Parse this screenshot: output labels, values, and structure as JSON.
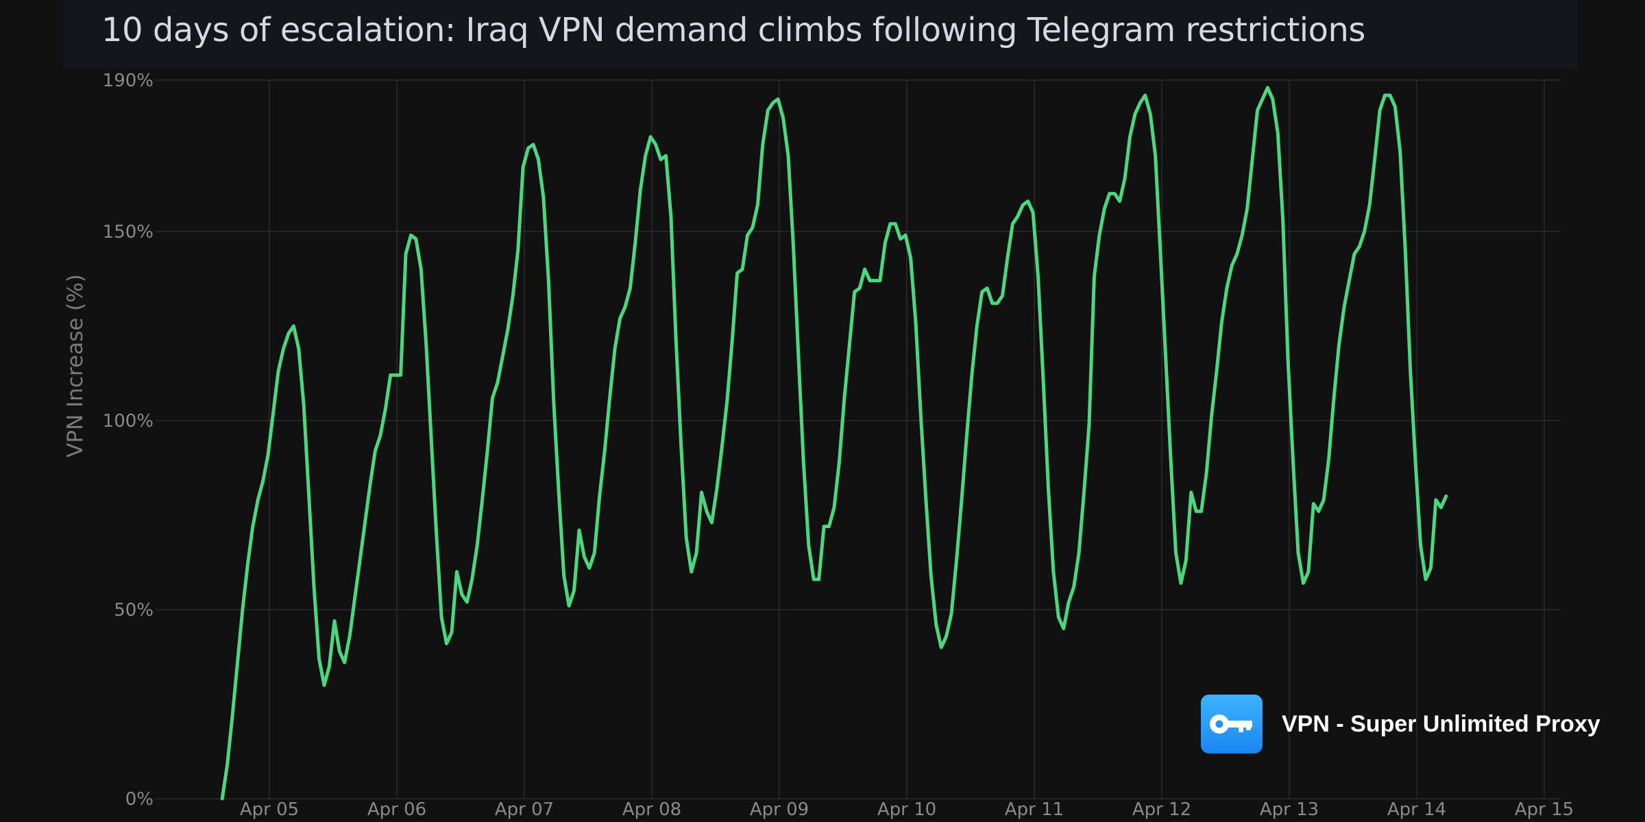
{
  "chart_data": {
    "type": "line",
    "title": "10 days of escalation: Iraq VPN demand climbs following Telegram restrictions",
    "xlabel": "",
    "ylabel": "VPN Increase (%)",
    "x_ticks": [
      "Apr 05",
      "Apr 06",
      "Apr 07",
      "Apr 08",
      "Apr 09",
      "Apr 10",
      "Apr 11",
      "Apr 12",
      "Apr 13",
      "Apr 14",
      "Apr 15"
    ],
    "y_ticks": [
      "0%",
      "50%",
      "100%",
      "150%",
      "190%"
    ],
    "y_tick_values": [
      0,
      50,
      100,
      150,
      190
    ],
    "xlim_days_from_apr05": [
      -0.86,
      10.1
    ],
    "ylim": [
      0,
      190
    ],
    "grid": true,
    "line_color": "#4cd680",
    "series": [
      {
        "name": "",
        "points": [
          [
            -0.37,
            0
          ],
          [
            -0.33,
            9
          ],
          [
            -0.29,
            22
          ],
          [
            -0.25,
            36
          ],
          [
            -0.21,
            50
          ],
          [
            -0.17,
            62
          ],
          [
            -0.13,
            72
          ],
          [
            -0.09,
            79
          ],
          [
            -0.05,
            84
          ],
          [
            -0.01,
            91
          ],
          [
            0.03,
            102
          ],
          [
            0.07,
            113
          ],
          [
            0.11,
            119
          ],
          [
            0.15,
            123
          ],
          [
            0.19,
            125
          ],
          [
            0.23,
            119
          ],
          [
            0.27,
            104
          ],
          [
            0.31,
            80
          ],
          [
            0.35,
            56
          ],
          [
            0.39,
            37
          ],
          [
            0.43,
            30
          ],
          [
            0.47,
            35
          ],
          [
            0.51,
            47
          ],
          [
            0.55,
            39
          ],
          [
            0.59,
            36
          ],
          [
            0.63,
            43
          ],
          [
            0.67,
            53
          ],
          [
            0.71,
            63
          ],
          [
            0.75,
            73
          ],
          [
            0.79,
            83
          ],
          [
            0.83,
            92
          ],
          [
            0.87,
            96
          ],
          [
            0.91,
            103
          ],
          [
            0.95,
            112
          ],
          [
            0.99,
            112
          ],
          [
            1.03,
            112
          ],
          [
            1.07,
            144
          ],
          [
            1.11,
            149
          ],
          [
            1.15,
            148
          ],
          [
            1.19,
            140
          ],
          [
            1.23,
            120
          ],
          [
            1.27,
            95
          ],
          [
            1.31,
            70
          ],
          [
            1.35,
            48
          ],
          [
            1.39,
            41
          ],
          [
            1.43,
            44
          ],
          [
            1.47,
            60
          ],
          [
            1.51,
            54
          ],
          [
            1.55,
            52
          ],
          [
            1.59,
            58
          ],
          [
            1.63,
            67
          ],
          [
            1.67,
            79
          ],
          [
            1.71,
            92
          ],
          [
            1.75,
            106
          ],
          [
            1.79,
            110
          ],
          [
            1.83,
            117
          ],
          [
            1.87,
            124
          ],
          [
            1.91,
            133
          ],
          [
            1.95,
            145
          ],
          [
            1.99,
            167
          ],
          [
            2.03,
            172
          ],
          [
            2.07,
            173
          ],
          [
            2.11,
            169
          ],
          [
            2.15,
            159
          ],
          [
            2.19,
            137
          ],
          [
            2.23,
            105
          ],
          [
            2.27,
            81
          ],
          [
            2.31,
            59
          ],
          [
            2.35,
            51
          ],
          [
            2.39,
            55
          ],
          [
            2.43,
            71
          ],
          [
            2.47,
            64
          ],
          [
            2.51,
            61
          ],
          [
            2.55,
            65
          ],
          [
            2.59,
            80
          ],
          [
            2.63,
            92
          ],
          [
            2.67,
            106
          ],
          [
            2.71,
            119
          ],
          [
            2.75,
            127
          ],
          [
            2.79,
            130
          ],
          [
            2.83,
            135
          ],
          [
            2.87,
            147
          ],
          [
            2.91,
            161
          ],
          [
            2.95,
            170
          ],
          [
            2.99,
            175
          ],
          [
            3.03,
            173
          ],
          [
            3.07,
            169
          ],
          [
            3.11,
            170
          ],
          [
            3.15,
            154
          ],
          [
            3.19,
            121
          ],
          [
            3.23,
            93
          ],
          [
            3.27,
            69
          ],
          [
            3.31,
            60
          ],
          [
            3.35,
            65
          ],
          [
            3.39,
            81
          ],
          [
            3.43,
            76
          ],
          [
            3.47,
            73
          ],
          [
            3.51,
            82
          ],
          [
            3.55,
            93
          ],
          [
            3.59,
            105
          ],
          [
            3.63,
            121
          ],
          [
            3.67,
            139
          ],
          [
            3.71,
            140
          ],
          [
            3.75,
            149
          ],
          [
            3.79,
            151
          ],
          [
            3.83,
            157
          ],
          [
            3.87,
            173
          ],
          [
            3.91,
            182
          ],
          [
            3.95,
            184
          ],
          [
            3.99,
            185
          ],
          [
            4.03,
            180
          ],
          [
            4.07,
            170
          ],
          [
            4.11,
            146
          ],
          [
            4.15,
            117
          ],
          [
            4.19,
            89
          ],
          [
            4.23,
            67
          ],
          [
            4.27,
            58
          ],
          [
            4.31,
            58
          ],
          [
            4.35,
            72
          ],
          [
            4.39,
            72
          ],
          [
            4.43,
            77
          ],
          [
            4.47,
            89
          ],
          [
            4.51,
            106
          ],
          [
            4.55,
            120
          ],
          [
            4.59,
            134
          ],
          [
            4.63,
            135
          ],
          [
            4.67,
            140
          ],
          [
            4.71,
            137
          ],
          [
            4.75,
            137
          ],
          [
            4.79,
            137
          ],
          [
            4.83,
            147
          ],
          [
            4.87,
            152
          ],
          [
            4.91,
            152
          ],
          [
            4.95,
            148
          ],
          [
            4.99,
            149
          ],
          [
            5.03,
            143
          ],
          [
            5.07,
            126
          ],
          [
            5.11,
            101
          ],
          [
            5.15,
            79
          ],
          [
            5.19,
            59
          ],
          [
            5.23,
            46
          ],
          [
            5.27,
            40
          ],
          [
            5.31,
            43
          ],
          [
            5.35,
            49
          ],
          [
            5.39,
            63
          ],
          [
            5.43,
            79
          ],
          [
            5.47,
            96
          ],
          [
            5.51,
            112
          ],
          [
            5.55,
            125
          ],
          [
            5.59,
            134
          ],
          [
            5.63,
            135
          ],
          [
            5.67,
            131
          ],
          [
            5.71,
            131
          ],
          [
            5.75,
            133
          ],
          [
            5.79,
            143
          ],
          [
            5.83,
            152
          ],
          [
            5.87,
            154
          ],
          [
            5.91,
            157
          ],
          [
            5.95,
            158
          ],
          [
            5.99,
            155
          ],
          [
            6.03,
            138
          ],
          [
            6.07,
            111
          ],
          [
            6.11,
            82
          ],
          [
            6.15,
            60
          ],
          [
            6.19,
            48
          ],
          [
            6.23,
            45
          ],
          [
            6.27,
            52
          ],
          [
            6.31,
            56
          ],
          [
            6.35,
            65
          ],
          [
            6.39,
            81
          ],
          [
            6.43,
            99
          ],
          [
            6.47,
            138
          ],
          [
            6.51,
            149
          ],
          [
            6.55,
            156
          ],
          [
            6.59,
            160
          ],
          [
            6.63,
            160
          ],
          [
            6.67,
            158
          ],
          [
            6.71,
            164
          ],
          [
            6.75,
            175
          ],
          [
            6.79,
            181
          ],
          [
            6.83,
            184
          ],
          [
            6.87,
            186
          ],
          [
            6.91,
            181
          ],
          [
            6.95,
            170
          ],
          [
            6.99,
            144
          ],
          [
            7.03,
            117
          ],
          [
            7.07,
            90
          ],
          [
            7.11,
            65
          ],
          [
            7.15,
            57
          ],
          [
            7.19,
            63
          ],
          [
            7.23,
            81
          ],
          [
            7.27,
            76
          ],
          [
            7.31,
            76
          ],
          [
            7.35,
            86
          ],
          [
            7.39,
            101
          ],
          [
            7.43,
            113
          ],
          [
            7.47,
            126
          ],
          [
            7.51,
            135
          ],
          [
            7.55,
            141
          ],
          [
            7.59,
            144
          ],
          [
            7.63,
            149
          ],
          [
            7.67,
            156
          ],
          [
            7.71,
            169
          ],
          [
            7.75,
            182
          ],
          [
            7.79,
            185
          ],
          [
            7.83,
            188
          ],
          [
            7.87,
            185
          ],
          [
            7.91,
            176
          ],
          [
            7.95,
            153
          ],
          [
            7.99,
            116
          ],
          [
            8.03,
            89
          ],
          [
            8.07,
            65
          ],
          [
            8.11,
            57
          ],
          [
            8.15,
            60
          ],
          [
            8.19,
            78
          ],
          [
            8.23,
            76
          ],
          [
            8.27,
            79
          ],
          [
            8.31,
            90
          ],
          [
            8.35,
            106
          ],
          [
            8.39,
            120
          ],
          [
            8.43,
            130
          ],
          [
            8.47,
            137
          ],
          [
            8.51,
            144
          ],
          [
            8.55,
            146
          ],
          [
            8.59,
            150
          ],
          [
            8.63,
            157
          ],
          [
            8.67,
            169
          ],
          [
            8.71,
            182
          ],
          [
            8.75,
            186
          ],
          [
            8.79,
            186
          ],
          [
            8.83,
            183
          ],
          [
            8.87,
            171
          ],
          [
            8.91,
            145
          ],
          [
            8.95,
            113
          ],
          [
            8.99,
            89
          ],
          [
            9.03,
            67
          ],
          [
            9.07,
            58
          ],
          [
            9.11,
            61
          ],
          [
            9.15,
            79
          ],
          [
            9.19,
            77
          ],
          [
            9.23,
            80
          ]
        ]
      }
    ]
  },
  "brand": {
    "name": "VPN - Super Unlimited Proxy",
    "logo_icon": "key-icon",
    "logo_color": "#2b9ef9"
  }
}
